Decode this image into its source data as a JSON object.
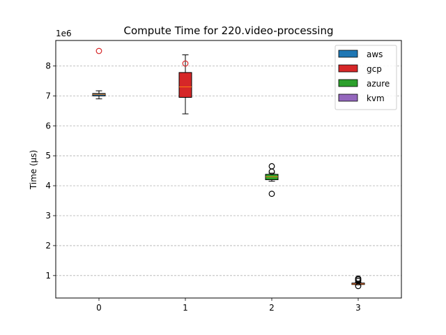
{
  "chart_data": {
    "type": "box",
    "title": "Compute Time for 220.video-processing",
    "xlabel": "",
    "ylabel": "Time (μs)",
    "y_multiplier_label": "1e6",
    "categories": [
      "0",
      "1",
      "2",
      "3"
    ],
    "xlim": [
      -0.5,
      3.5
    ],
    "ylim": [
      250000,
      8850000
    ],
    "yticks": [
      1000000,
      2000000,
      3000000,
      4000000,
      5000000,
      6000000,
      7000000,
      8000000
    ],
    "ytick_labels": [
      "1",
      "2",
      "3",
      "4",
      "5",
      "6",
      "7",
      "8"
    ],
    "grid": "y-dashed",
    "legend_position": "top-right",
    "series": [
      {
        "name": "aws",
        "color": "#1f77b4"
      },
      {
        "name": "gcp",
        "color": "#d62728"
      },
      {
        "name": "azure",
        "color": "#2ca02c"
      },
      {
        "name": "kvm",
        "color": "#9467bd"
      }
    ],
    "boxes": [
      {
        "x": 0,
        "series": "aws",
        "whisker_low": 6900000,
        "q1": 7000000,
        "median": 7050000,
        "q3": 7080000,
        "whisker_high": 7170000,
        "outliers": [
          8500000
        ],
        "outlier_color": "#d62728"
      },
      {
        "x": 1,
        "series": "gcp",
        "whisker_low": 6400000,
        "q1": 6950000,
        "median": 7300000,
        "q3": 7780000,
        "whisker_high": 8370000,
        "outliers": [
          8080000
        ],
        "outlier_color": "#d62728"
      },
      {
        "x": 2,
        "series": "azure",
        "whisker_low": 4150000,
        "q1": 4200000,
        "median": 4300000,
        "q3": 4380000,
        "whisker_high": 4420000,
        "outliers": [
          3730000,
          4650000,
          4470000
        ],
        "outlier_color": "#000000"
      },
      {
        "x": 3,
        "series": "kvm",
        "whisker_low": 690000,
        "q1": 700000,
        "median": 720000,
        "q3": 750000,
        "whisker_high": 770000,
        "outliers": [
          650000,
          820000,
          870000,
          900000
        ],
        "outlier_color": "#000000"
      }
    ]
  }
}
